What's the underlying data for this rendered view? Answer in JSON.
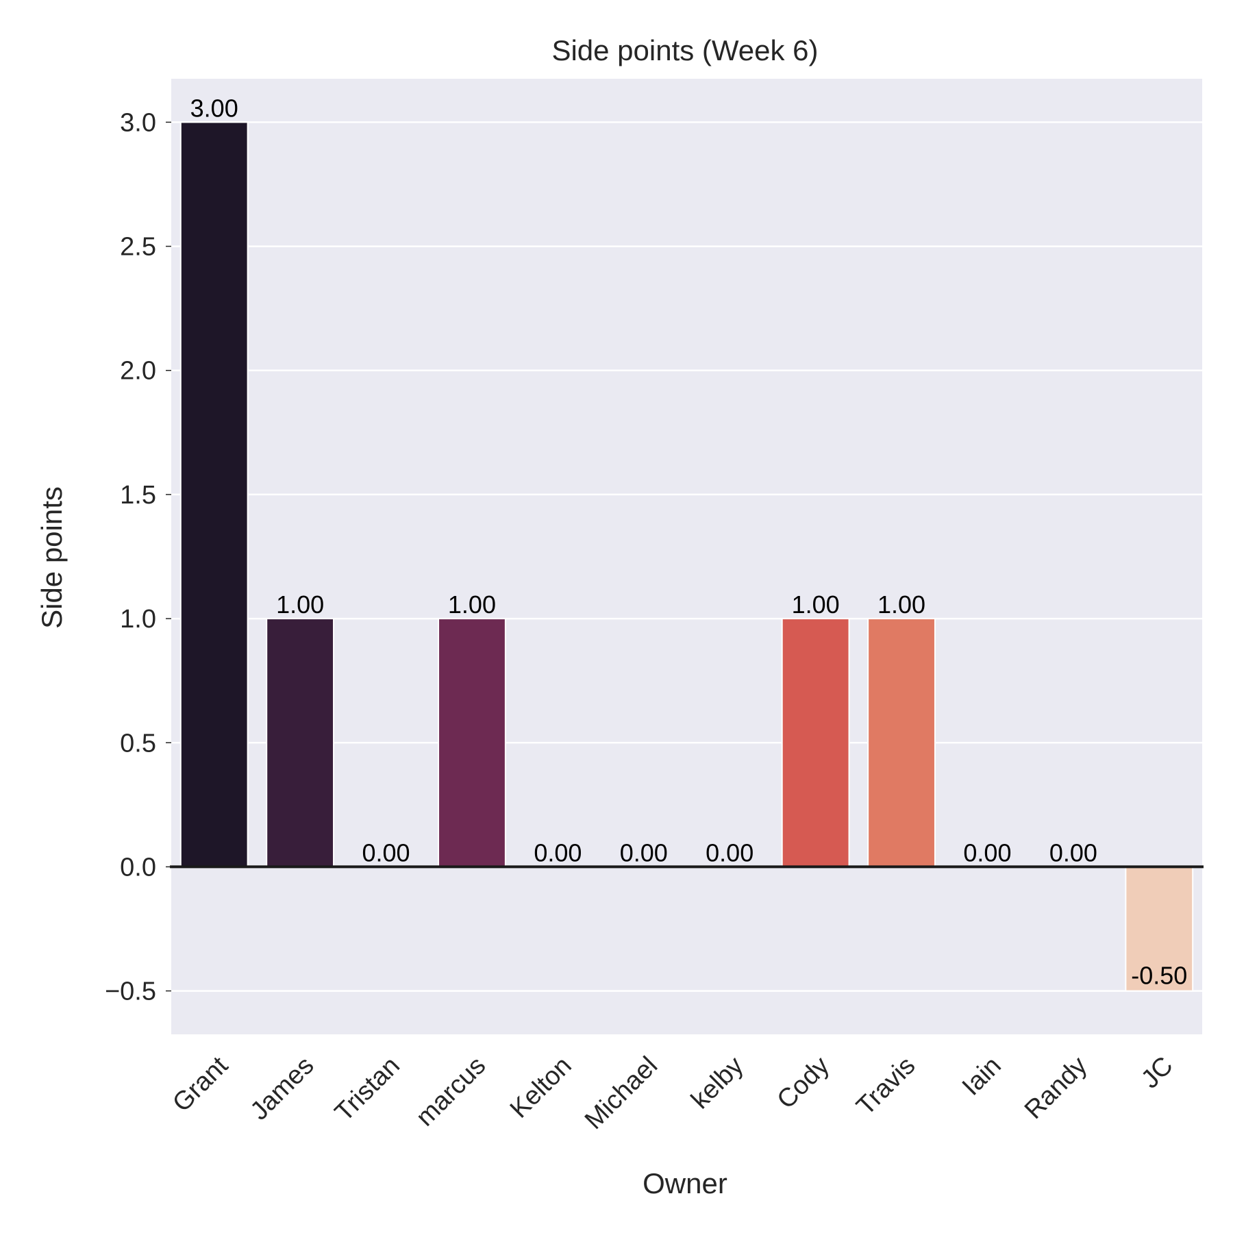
{
  "chart_data": {
    "type": "bar",
    "title": "Side points (Week 6)",
    "xlabel": "Owner",
    "ylabel": "Side points",
    "categories": [
      "Grant",
      "James",
      "Tristan",
      "marcus",
      "Kelton",
      "Michael",
      "kelby",
      "Cody",
      "Travis",
      "Iain",
      "Randy",
      "JC"
    ],
    "values": [
      3.0,
      1.0,
      0.0,
      1.0,
      0.0,
      0.0,
      0.0,
      1.0,
      1.0,
      0.0,
      0.0,
      -0.5
    ],
    "data_labels": [
      "3.00",
      "1.00",
      "0.00",
      "1.00",
      "0.00",
      "0.00",
      "0.00",
      "1.00",
      "1.00",
      "0.00",
      "0.00",
      "-0.50"
    ],
    "colors": [
      "#1e1628",
      "#381e3a",
      "#4e2147",
      "#6d2a52",
      "#8c2e55",
      "#aa3253",
      "#c83b4d",
      "#d65a52",
      "#e07a63",
      "#e89a7d",
      "#edb89b",
      "#f0cdb8"
    ],
    "yticks": [
      -0.5,
      0.0,
      0.5,
      1.0,
      1.5,
      2.0,
      2.5,
      3.0
    ],
    "ytick_labels": [
      "−0.5",
      "0.0",
      "0.5",
      "1.0",
      "1.5",
      "2.0",
      "2.5",
      "3.0"
    ],
    "ylim": [
      -0.675,
      3.175
    ],
    "grid": true,
    "zero_line": true,
    "background_color": "#eaeaf2",
    "grid_color": "#ffffff"
  }
}
